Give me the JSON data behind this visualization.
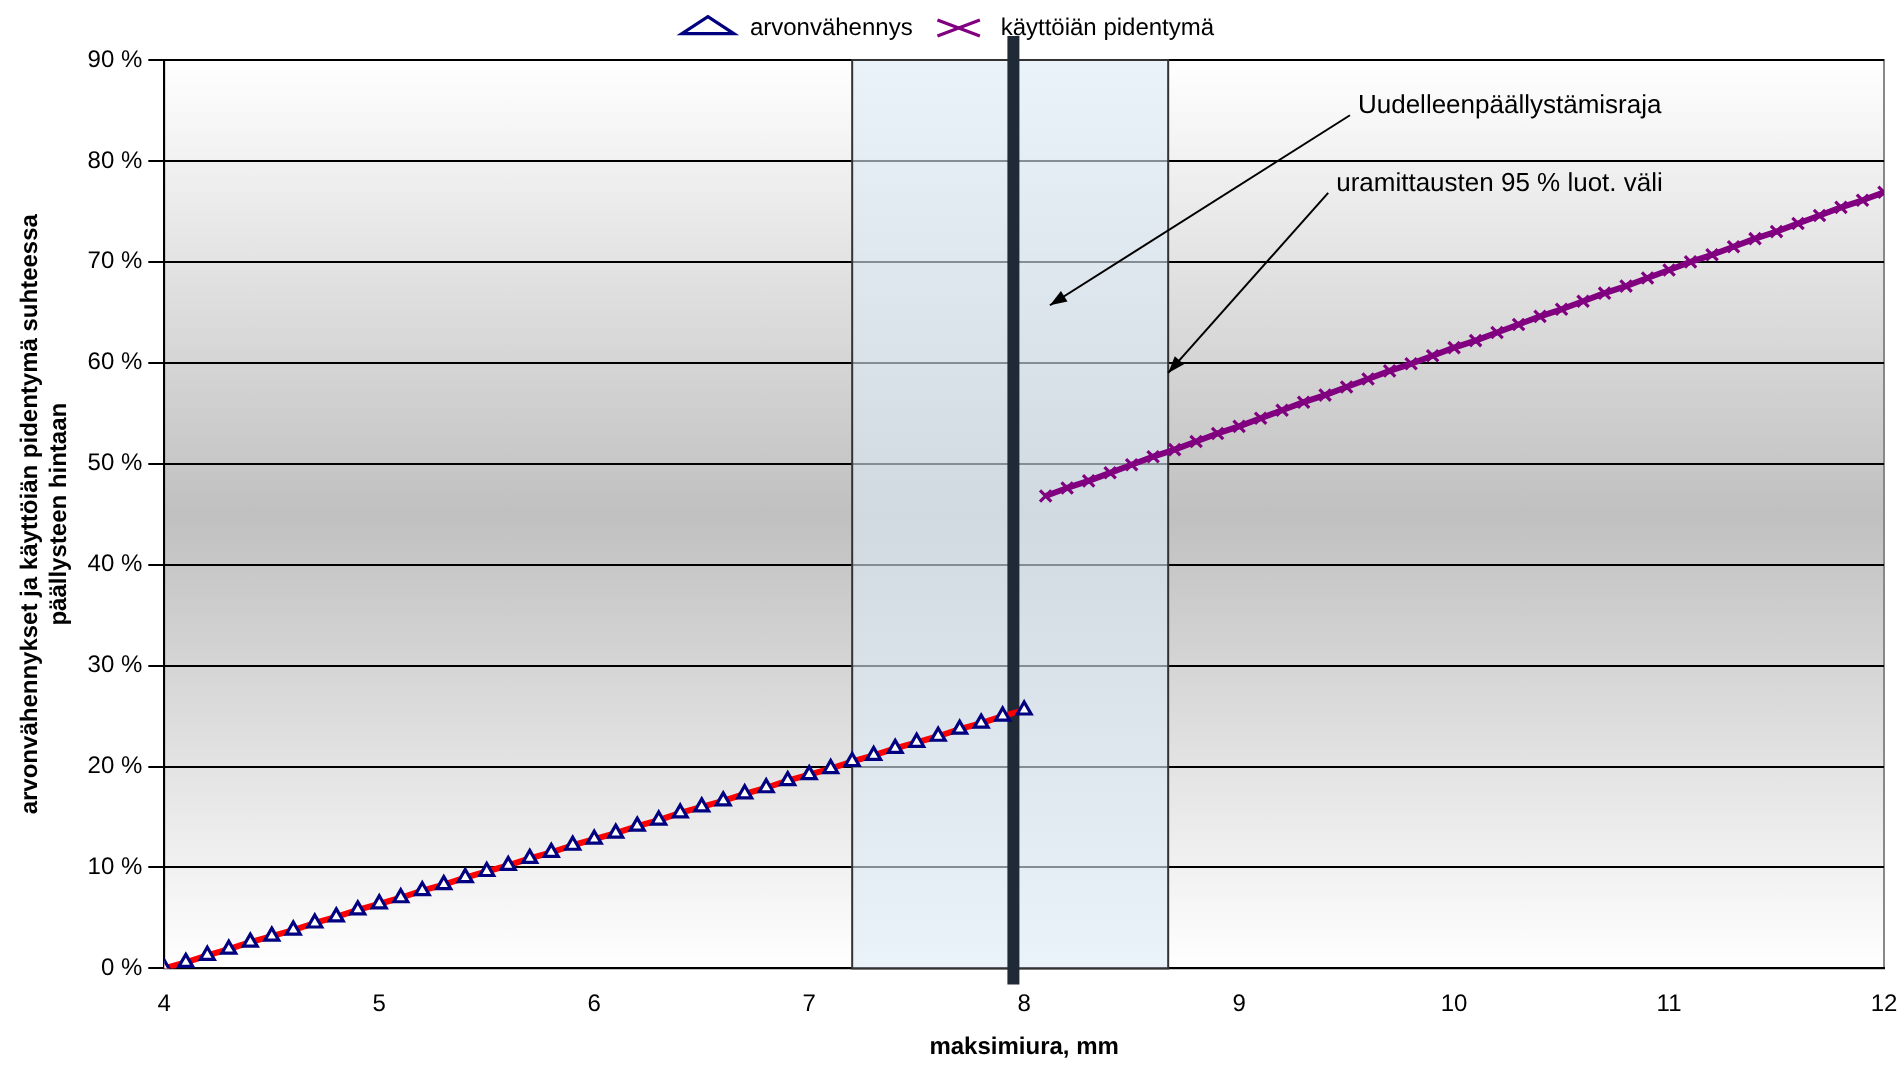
{
  "chart_data": {
    "type": "line",
    "xlabel": "maksimiura, mm",
    "ylabel": "arvonvähennykset ja käyttöiän pidentymä suhteessa\npäällysteen hintaan",
    "xlim": [
      4,
      12
    ],
    "xticks": [
      4,
      5,
      6,
      7,
      8,
      9,
      10,
      11,
      12
    ],
    "ylim": [
      0,
      90
    ],
    "yticks": [
      {
        "value": 0,
        "label": "0 %"
      },
      {
        "value": 10,
        "label": "10 %"
      },
      {
        "value": 20,
        "label": "20 %"
      },
      {
        "value": 30,
        "label": "30 %"
      },
      {
        "value": 40,
        "label": "40 %"
      },
      {
        "value": 50,
        "label": "50 %"
      },
      {
        "value": 60,
        "label": "60 %"
      },
      {
        "value": 70,
        "label": "70 %"
      },
      {
        "value": 80,
        "label": "80 %"
      },
      {
        "value": 90,
        "label": "90 %"
      }
    ],
    "grid": "y",
    "legend": "top",
    "series": [
      {
        "name": "arvonvähennys",
        "color": "#ff0000",
        "marker": "triangle",
        "x": [
          4,
          4.1,
          4.2,
          4.3,
          4.4,
          4.5,
          4.6,
          4.7,
          4.8,
          4.9,
          5,
          5.1,
          5.2,
          5.3,
          5.4,
          5.5,
          5.6,
          5.7,
          5.8,
          5.9,
          6,
          6.1,
          6.2,
          6.3,
          6.4,
          6.5,
          6.6,
          6.7,
          6.8,
          6.9,
          7,
          7.1,
          7.2,
          7.3,
          7.4,
          7.5,
          7.6,
          7.7,
          7.8,
          7.9,
          8
        ],
        "values": [
          0,
          0.6,
          1.3,
          1.9,
          2.6,
          3.2,
          3.8,
          4.5,
          5.1,
          5.8,
          6.4,
          7.0,
          7.7,
          8.3,
          9.0,
          9.6,
          10.2,
          10.9,
          11.5,
          12.2,
          12.8,
          13.4,
          14.1,
          14.7,
          15.4,
          16.0,
          16.6,
          17.3,
          17.9,
          18.6,
          19.2,
          19.8,
          20.5,
          21.1,
          21.8,
          22.4,
          23.0,
          23.7,
          24.3,
          25.0,
          25.6
        ]
      },
      {
        "name": "käyttöiän pidentymä",
        "color": "#800080",
        "marker": "cross",
        "x": [
          8.1,
          8.2,
          8.3,
          8.4,
          8.5,
          8.6,
          8.7,
          8.8,
          8.9,
          9,
          9.1,
          9.2,
          9.3,
          9.4,
          9.5,
          9.6,
          9.7,
          9.8,
          9.9,
          10,
          10.1,
          10.2,
          10.3,
          10.4,
          10.5,
          10.6,
          10.7,
          10.8,
          10.9,
          11,
          11.1,
          11.2,
          11.3,
          11.4,
          11.5,
          11.6,
          11.7,
          11.8,
          11.9,
          12
        ],
        "values": [
          46.8,
          47.6,
          48.3,
          49.1,
          49.9,
          50.7,
          51.4,
          52.2,
          53.0,
          53.7,
          54.5,
          55.3,
          56.1,
          56.8,
          57.6,
          58.4,
          59.2,
          59.9,
          60.7,
          61.5,
          62.2,
          63.0,
          63.8,
          64.6,
          65.3,
          66.1,
          66.9,
          67.6,
          68.4,
          69.2,
          70.0,
          70.7,
          71.5,
          72.3,
          73.0,
          73.8,
          74.6,
          75.4,
          76.1,
          76.9
        ]
      }
    ],
    "bands": [
      {
        "axis": "x",
        "from": 7.2,
        "to": 8.67,
        "color": "#dce9f7"
      }
    ],
    "ref_lines": [
      {
        "axis": "x",
        "value": 7.95,
        "color": "#1f2a36"
      }
    ],
    "annotations": [
      "Uudelleenpäällystämisraja",
      {
        "text": "uramittausten 95 % luot. väli",
        "x": 8.67,
        "y": 59
      }
    ]
  }
}
